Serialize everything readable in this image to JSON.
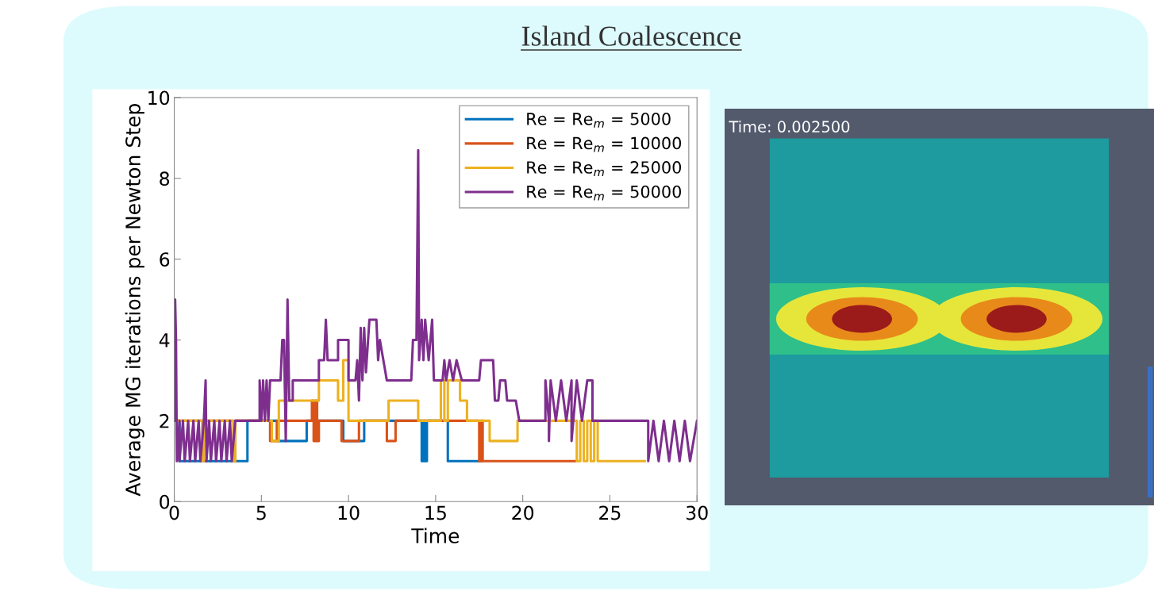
{
  "chart_data": {
    "type": "line",
    "title": "Island Coalescence",
    "xlabel": "Time",
    "ylabel": "Average MG iterations per Newton Step",
    "xlim": [
      0,
      30
    ],
    "xticks": [
      0,
      5,
      10,
      15,
      20,
      25,
      30
    ],
    "ylim": [
      0,
      10
    ],
    "yticks": [
      0,
      2,
      4,
      6,
      8,
      10
    ],
    "grid": false,
    "legend": "top right",
    "marker": "none",
    "line_style": "solid",
    "annotations": [
      "Time: 0.002500"
    ],
    "series": [
      {
        "name": "Re = Re$_{m}$ = 5000",
        "color": "#0072bd",
        "x": [
          0,
          0.3,
          0.3,
          3.6,
          3.6,
          4.2,
          4.2,
          5.9,
          5.9,
          7.6,
          7.6,
          9.7,
          9.7,
          10.9,
          10.9,
          14.2,
          14.2,
          14.3,
          14.3,
          14.4,
          14.4,
          14.5,
          14.5,
          15.7,
          15.7,
          17.6
        ],
        "values": [
          2,
          2,
          1,
          1,
          1,
          1,
          2,
          2,
          1.5,
          1.5,
          2,
          2,
          1.5,
          1.5,
          2,
          2,
          1,
          1,
          2,
          2,
          1,
          1,
          2,
          2,
          1,
          1
        ]
      },
      {
        "name": "Re = Re$_{m}$ = 10000",
        "color": "#d95319",
        "x": [
          0,
          3.4,
          3.4,
          3.5,
          3.5,
          5.5,
          5.5,
          5.9,
          5.9,
          7.9,
          7.9,
          8.0,
          8.0,
          8.1,
          8.1,
          8.2,
          8.2,
          8.3,
          8.3,
          9.6,
          9.6,
          10.6,
          10.6,
          12.2,
          12.2,
          12.7,
          12.7,
          17.5,
          17.5,
          17.6,
          17.6,
          17.7,
          17.7,
          17.8,
          17.8,
          23
        ],
        "values": [
          2,
          2,
          1,
          1,
          2,
          2,
          1.5,
          1.5,
          2,
          2,
          2.5,
          2.5,
          1.5,
          1.5,
          2.5,
          2.5,
          1.5,
          1.5,
          2,
          2,
          1.5,
          1.5,
          2,
          2,
          1.5,
          1.5,
          2,
          2,
          1,
          1,
          2,
          2,
          1,
          1,
          1,
          1
        ]
      },
      {
        "name": "Re = Re$_{m}$ = 25000",
        "color": "#edb120",
        "x": [
          0,
          1.6,
          1.6,
          1.7,
          1.7,
          3.4,
          3.4,
          3.5,
          3.5,
          5.6,
          5.6,
          6.0,
          6.0,
          8.3,
          8.3,
          9.4,
          9.4,
          9.7,
          9.7,
          10.0,
          10.0,
          12.3,
          12.3,
          14.0,
          14.0,
          15.3,
          15.3,
          15.5,
          15.5,
          15.7,
          15.7,
          16.4,
          16.4,
          16.8,
          16.8,
          18.1,
          18.1,
          19.7,
          19.7,
          23.1,
          23.1,
          23.3,
          23.3,
          23.5,
          23.5,
          23.7,
          23.7,
          23.9,
          23.9,
          24.1,
          24.1,
          24.3,
          24.3,
          27
        ],
        "values": [
          2,
          2,
          1,
          1,
          2,
          2,
          1,
          1,
          2,
          2,
          1.5,
          1.5,
          2.5,
          2.5,
          3,
          3,
          2.5,
          2.5,
          3.5,
          3.5,
          2,
          2,
          2.5,
          2.5,
          2,
          2,
          3,
          3,
          2,
          2,
          3,
          3,
          2.5,
          2.5,
          2,
          2,
          1.5,
          1.5,
          2,
          2,
          1,
          1,
          2,
          2,
          1,
          1,
          2,
          2,
          1,
          1,
          2,
          2,
          1,
          1
        ]
      },
      {
        "name": "Re = Re$_{m}$ = 50000",
        "color": "#7e2f8e",
        "x": [
          0,
          0.05,
          0.1,
          0.15,
          0.3,
          0.3,
          0.5,
          0.6,
          0.8,
          0.9,
          1.1,
          1.2,
          1.4,
          1.5,
          1.7,
          1.8,
          1.85,
          2.0,
          2.1,
          2.3,
          2.4,
          2.6,
          2.7,
          2.9,
          3.0,
          3.2,
          3.3,
          3.5,
          4.9,
          4.9,
          5.0,
          5.1,
          5.2,
          5.3,
          5.4,
          5.5,
          6.1,
          6.2,
          6.3,
          6.4,
          6.5,
          6.6,
          6.8,
          6.8,
          8.3,
          8.3,
          8.6,
          8.7,
          8.8,
          9.4,
          9.4,
          10.0,
          10.0,
          10.4,
          10.5,
          10.6,
          10.7,
          10.8,
          10.9,
          11.0,
          11.2,
          11.6,
          11.7,
          11.8,
          12.2,
          13.6,
          13.7,
          13.9,
          14.0,
          14.05,
          14.2,
          14.3,
          14.4,
          14.6,
          14.8,
          14.9,
          15.4,
          15.5,
          15.6,
          15.8,
          16.0,
          16.2,
          16.5,
          17.5,
          17.6,
          18.3,
          18.4,
          18.6,
          18.7,
          19.0,
          19.1,
          19.6,
          19.8,
          21.3,
          21.3,
          21.5,
          21.5,
          21.6,
          21.9,
          22.2,
          22.5,
          22.8,
          22.8,
          22.9,
          23.1,
          23.4,
          23.7,
          24.0,
          24.0,
          27.2,
          27.2,
          27.5,
          27.8,
          28.1,
          28.4,
          28.7,
          29.0,
          29.3,
          29.6,
          30
        ],
        "values": [
          2,
          5,
          4,
          1,
          2,
          1,
          2,
          1,
          2,
          1,
          2,
          1,
          2,
          1,
          2,
          3,
          1,
          2,
          1,
          2,
          1,
          2,
          1,
          2,
          1,
          2,
          1,
          2,
          2,
          3,
          2,
          3,
          2,
          3,
          2,
          3,
          3,
          4,
          4,
          1.5,
          5,
          2.5,
          2.5,
          3,
          3,
          3.5,
          3.5,
          4.5,
          3.5,
          3.5,
          4,
          4,
          3,
          3,
          3.5,
          2.5,
          4.3,
          3,
          4.3,
          3.2,
          4.5,
          4.5,
          3.5,
          4,
          3,
          3,
          4,
          4,
          8.7,
          3.5,
          4.5,
          3.5,
          4.5,
          3.5,
          4.5,
          3,
          3,
          3.5,
          3,
          3.5,
          3,
          3.5,
          3,
          3,
          3.5,
          3.5,
          2.5,
          2.5,
          3,
          3,
          2.5,
          2.5,
          2,
          2,
          3,
          2,
          1.5,
          3,
          2,
          3,
          2,
          3,
          1.5,
          2,
          3,
          2,
          3,
          3,
          2,
          2,
          1,
          2,
          1,
          2,
          1,
          2,
          1,
          2,
          1,
          2
        ]
      }
    ]
  }
}
